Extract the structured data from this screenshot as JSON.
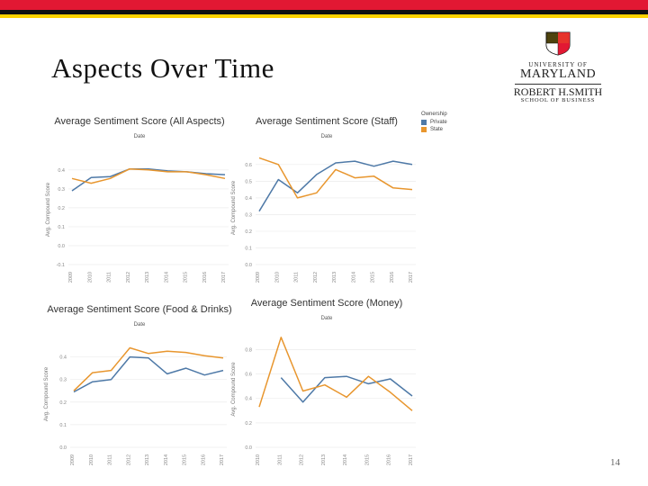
{
  "slide": {
    "title": "Aspects Over Time",
    "page_number": "14",
    "logo_lines": [
      "UNIVERSITY OF",
      "MARYLAND",
      "ROBERT H.SMITH",
      "SCHOOL OF BUSINESS"
    ]
  },
  "colors": {
    "private": "#4e79a7",
    "state": "#e8962e"
  },
  "legend": {
    "title": "Ownership",
    "items": [
      {
        "label": "Private",
        "color": "#4e79a7"
      },
      {
        "label": "State",
        "color": "#e8962e"
      }
    ]
  },
  "chart_data": [
    {
      "type": "line",
      "title": "Average Sentiment Score (All Aspects)",
      "xlabel": "Date",
      "ylabel": "Avg. Compound Score",
      "categories": [
        "2009",
        "2010",
        "2011",
        "2012",
        "2013",
        "2014",
        "2015",
        "2016",
        "2017"
      ],
      "yticks": [
        -0.1,
        0.0,
        0.1,
        0.2,
        0.3,
        0.4
      ],
      "ytick_labels": [
        "-0.1",
        "0.0",
        "0.1",
        "0.2",
        "0.3",
        "0.4"
      ],
      "ylim": [
        -0.1,
        0.48
      ],
      "series": [
        {
          "name": "Private",
          "values": [
            0.29,
            0.36,
            0.365,
            0.405,
            0.405,
            0.395,
            0.39,
            0.38,
            0.375
          ]
        },
        {
          "name": "State",
          "values": [
            0.355,
            0.33,
            0.355,
            0.405,
            0.4,
            0.39,
            0.39,
            0.375,
            0.355
          ]
        }
      ]
    },
    {
      "type": "line",
      "title": "Average Sentiment Score (Staff)",
      "xlabel": "Date",
      "ylabel": "Avg. Compound Score",
      "categories": [
        "2009",
        "2010",
        "2011",
        "2012",
        "2013",
        "2014",
        "2015",
        "2016",
        "2017"
      ],
      "yticks": [
        0.0,
        0.1,
        0.2,
        0.3,
        0.4,
        0.5,
        0.6
      ],
      "ytick_labels": [
        "0.0",
        "0.1",
        "0.2",
        "0.3",
        "0.4",
        "0.5",
        "0.6"
      ],
      "ylim": [
        0.0,
        0.68
      ],
      "series": [
        {
          "name": "Private",
          "values": [
            0.32,
            0.51,
            0.43,
            0.54,
            0.61,
            0.62,
            0.59,
            0.62,
            0.6
          ]
        },
        {
          "name": "State",
          "values": [
            0.64,
            0.6,
            0.4,
            0.43,
            0.57,
            0.52,
            0.53,
            0.46,
            0.45
          ]
        }
      ]
    },
    {
      "type": "line",
      "title": "Average Sentiment Score (Food & Drinks)",
      "xlabel": "Date",
      "ylabel": "Avg. Compound Score",
      "categories": [
        "2009",
        "2010",
        "2011",
        "2012",
        "2013",
        "2014",
        "2015",
        "2016",
        "2017"
      ],
      "yticks": [
        0.0,
        0.1,
        0.2,
        0.3,
        0.4
      ],
      "ytick_labels": [
        "0.0",
        "0.1",
        "0.2",
        "0.3",
        "0.4"
      ],
      "ylim": [
        0.0,
        0.47
      ],
      "series": [
        {
          "name": "Private",
          "values": [
            0.245,
            0.29,
            0.3,
            0.4,
            0.395,
            0.325,
            0.35,
            0.32,
            0.34
          ]
        },
        {
          "name": "State",
          "values": [
            0.25,
            0.33,
            0.34,
            0.44,
            0.415,
            0.425,
            0.42,
            0.405,
            0.395
          ]
        }
      ]
    },
    {
      "type": "line",
      "title": "Average Sentiment Score (Money)",
      "xlabel": "Date",
      "ylabel": "Avg. Compound Score",
      "categories": [
        "2010",
        "2011",
        "2012",
        "2013",
        "2014",
        "2015",
        "2016",
        "2017"
      ],
      "yticks": [
        0.0,
        0.2,
        0.4,
        0.6,
        0.8
      ],
      "ytick_labels": [
        "0.0",
        "0.2",
        "0.4",
        "0.6",
        "0.8"
      ],
      "ylim": [
        0.0,
        0.95
      ],
      "series": [
        {
          "name": "Private",
          "values": [
            null,
            0.57,
            0.37,
            0.57,
            0.58,
            0.52,
            0.56,
            0.42
          ]
        },
        {
          "name": "State",
          "values": [
            0.33,
            0.9,
            0.46,
            0.51,
            0.41,
            0.58,
            0.45,
            0.3
          ]
        }
      ]
    }
  ]
}
